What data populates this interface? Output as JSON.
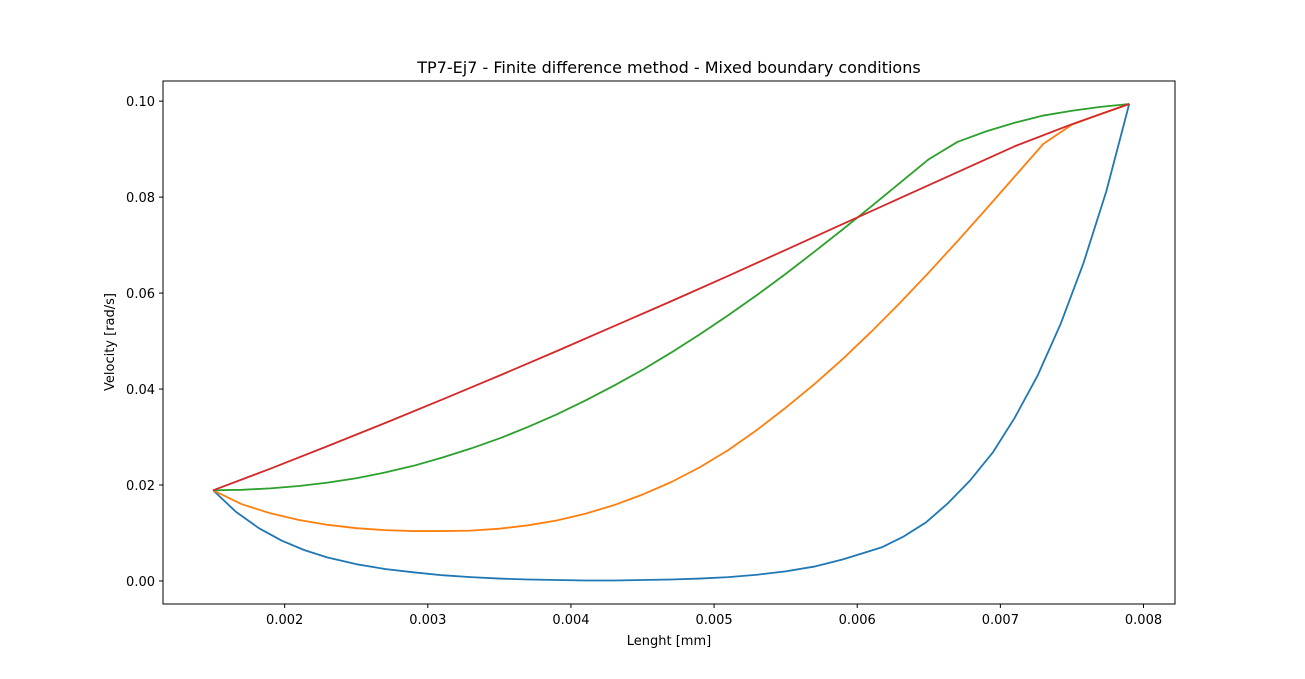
{
  "chart_data": {
    "type": "line",
    "title": "TP7-Ej7 - Finite difference method - Mixed boundary conditions",
    "xlabel": "Lenght [mm]",
    "ylabel": "Velocity [rad/s]",
    "xlim": [
      0.00115,
      0.00822
    ],
    "ylim": [
      -0.0048,
      0.1042
    ],
    "grid": false,
    "xticks": [
      0.002,
      0.003,
      0.004,
      0.005,
      0.006,
      0.007,
      0.008
    ],
    "xtick_labels": [
      "0.002",
      "0.003",
      "0.004",
      "0.005",
      "0.006",
      "0.007",
      "0.008"
    ],
    "yticks": [
      0.0,
      0.02,
      0.04,
      0.06,
      0.08,
      0.1
    ],
    "ytick_labels": [
      "0.00",
      "0.02",
      "0.04",
      "0.06",
      "0.08",
      "0.10"
    ],
    "series": [
      {
        "color": "#1f77b4",
        "points": [
          [
            0.0015,
            0.0189
          ],
          [
            0.00166,
            0.0144
          ],
          [
            0.00182,
            0.011
          ],
          [
            0.00198,
            0.0084
          ],
          [
            0.00214,
            0.0064
          ],
          [
            0.0023,
            0.0049
          ],
          [
            0.0025,
            0.0035
          ],
          [
            0.0027,
            0.0025
          ],
          [
            0.0029,
            0.0018
          ],
          [
            0.0031,
            0.0012
          ],
          [
            0.0033,
            0.0008
          ],
          [
            0.0035,
            0.0005
          ],
          [
            0.0037,
            0.0003
          ],
          [
            0.0039,
            0.0002
          ],
          [
            0.0041,
            0.0001
          ],
          [
            0.0043,
            0.0001
          ],
          [
            0.0045,
            0.0002
          ],
          [
            0.0047,
            0.0003
          ],
          [
            0.0049,
            0.0005
          ],
          [
            0.0051,
            0.0008
          ],
          [
            0.0053,
            0.0013
          ],
          [
            0.0055,
            0.002
          ],
          [
            0.0057,
            0.003
          ],
          [
            0.0059,
            0.0045
          ],
          [
            0.00603,
            0.0057
          ],
          [
            0.00617,
            0.007
          ],
          [
            0.00632,
            0.0092
          ],
          [
            0.00648,
            0.0122
          ],
          [
            0.00663,
            0.0161
          ],
          [
            0.00679,
            0.021
          ],
          [
            0.00695,
            0.0269
          ],
          [
            0.0071,
            0.034
          ],
          [
            0.00726,
            0.0428
          ],
          [
            0.00742,
            0.0535
          ],
          [
            0.00758,
            0.0662
          ],
          [
            0.00774,
            0.0812
          ],
          [
            0.0079,
            0.0994
          ]
        ]
      },
      {
        "color": "#ff7f0e",
        "points": [
          [
            0.0015,
            0.0189
          ],
          [
            0.0017,
            0.016
          ],
          [
            0.0019,
            0.0141
          ],
          [
            0.0021,
            0.0127
          ],
          [
            0.0023,
            0.0117
          ],
          [
            0.0025,
            0.011
          ],
          [
            0.0027,
            0.0106
          ],
          [
            0.0029,
            0.0104
          ],
          [
            0.0031,
            0.0104
          ],
          [
            0.0033,
            0.0105
          ],
          [
            0.0035,
            0.0109
          ],
          [
            0.0037,
            0.0116
          ],
          [
            0.0039,
            0.0126
          ],
          [
            0.0041,
            0.014
          ],
          [
            0.0043,
            0.0158
          ],
          [
            0.0045,
            0.018
          ],
          [
            0.0047,
            0.0206
          ],
          [
            0.0049,
            0.0237
          ],
          [
            0.0051,
            0.0273
          ],
          [
            0.0053,
            0.0315
          ],
          [
            0.0055,
            0.0361
          ],
          [
            0.0057,
            0.041
          ],
          [
            0.0059,
            0.0463
          ],
          [
            0.0061,
            0.052
          ],
          [
            0.0063,
            0.058
          ],
          [
            0.0065,
            0.0643
          ],
          [
            0.0067,
            0.0708
          ],
          [
            0.0069,
            0.0775
          ],
          [
            0.0071,
            0.0843
          ],
          [
            0.0073,
            0.0911
          ],
          [
            0.0075,
            0.0951
          ],
          [
            0.0077,
            0.0973
          ],
          [
            0.0079,
            0.0994
          ]
        ]
      },
      {
        "color": "#2ca02c",
        "points": [
          [
            0.0015,
            0.0189
          ],
          [
            0.0017,
            0.019
          ],
          [
            0.0019,
            0.0193
          ],
          [
            0.0021,
            0.0198
          ],
          [
            0.0023,
            0.0205
          ],
          [
            0.0025,
            0.0214
          ],
          [
            0.0027,
            0.0226
          ],
          [
            0.0029,
            0.024
          ],
          [
            0.0031,
            0.0257
          ],
          [
            0.0033,
            0.0276
          ],
          [
            0.0035,
            0.0297
          ],
          [
            0.0037,
            0.0321
          ],
          [
            0.0039,
            0.0347
          ],
          [
            0.0041,
            0.0376
          ],
          [
            0.0043,
            0.0407
          ],
          [
            0.0045,
            0.044
          ],
          [
            0.0047,
            0.0476
          ],
          [
            0.0049,
            0.0514
          ],
          [
            0.0051,
            0.0554
          ],
          [
            0.0053,
            0.0596
          ],
          [
            0.0055,
            0.064
          ],
          [
            0.0057,
            0.0686
          ],
          [
            0.0059,
            0.0733
          ],
          [
            0.0061,
            0.0781
          ],
          [
            0.0063,
            0.083
          ],
          [
            0.0065,
            0.0879
          ],
          [
            0.0067,
            0.0915
          ],
          [
            0.0069,
            0.0937
          ],
          [
            0.0071,
            0.0955
          ],
          [
            0.0073,
            0.097
          ],
          [
            0.0075,
            0.098
          ],
          [
            0.0077,
            0.0988
          ],
          [
            0.0079,
            0.0994
          ]
        ]
      },
      {
        "color": "#d62728",
        "points": [
          [
            0.0015,
            0.0189
          ],
          [
            0.0019,
            0.0234
          ],
          [
            0.0023,
            0.0281
          ],
          [
            0.0027,
            0.0329
          ],
          [
            0.0031,
            0.0378
          ],
          [
            0.0035,
            0.0428
          ],
          [
            0.0039,
            0.0479
          ],
          [
            0.0043,
            0.0531
          ],
          [
            0.0047,
            0.0583
          ],
          [
            0.0051,
            0.0636
          ],
          [
            0.0055,
            0.069
          ],
          [
            0.0059,
            0.0744
          ],
          [
            0.0063,
            0.0798
          ],
          [
            0.0067,
            0.0852
          ],
          [
            0.0071,
            0.0906
          ],
          [
            0.0075,
            0.0952
          ],
          [
            0.0079,
            0.0994
          ]
        ]
      }
    ]
  }
}
